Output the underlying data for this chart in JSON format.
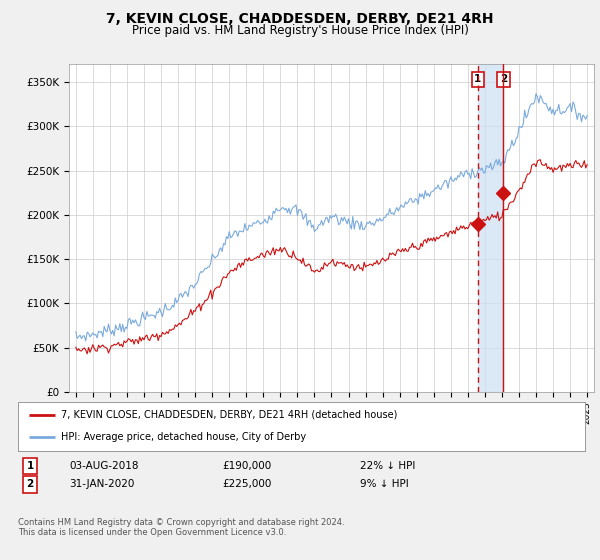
{
  "title": "7, KEVIN CLOSE, CHADDESDEN, DERBY, DE21 4RH",
  "subtitle": "Price paid vs. HM Land Registry's House Price Index (HPI)",
  "title_fontsize": 10,
  "subtitle_fontsize": 8.5,
  "ylim": [
    0,
    370000
  ],
  "yticks": [
    0,
    50000,
    100000,
    150000,
    200000,
    250000,
    300000,
    350000
  ],
  "ytick_labels": [
    "£0",
    "£50K",
    "£100K",
    "£150K",
    "£200K",
    "£250K",
    "£300K",
    "£350K"
  ],
  "background_color": "#f0f0f0",
  "plot_bg_color": "#ffffff",
  "hpi_color": "#7aaadd",
  "price_color": "#cc1111",
  "legend_label_price": "7, KEVIN CLOSE, CHADDESDEN, DERBY, DE21 4RH (detached house)",
  "legend_label_hpi": "HPI: Average price, detached house, City of Derby",
  "transaction1_date": "03-AUG-2018",
  "transaction1_price": "£190,000",
  "transaction1_hpi": "22% ↓ HPI",
  "transaction2_date": "31-JAN-2020",
  "transaction2_price": "£225,000",
  "transaction2_hpi": "9% ↓ HPI",
  "footer": "Contains HM Land Registry data © Crown copyright and database right 2024.\nThis data is licensed under the Open Government Licence v3.0.",
  "sale1_year": 2018.58,
  "sale1_value": 190000,
  "sale2_year": 2020.08,
  "sale2_value": 225000,
  "grid_color": "#cccccc",
  "shade_color": "#cce0f5"
}
